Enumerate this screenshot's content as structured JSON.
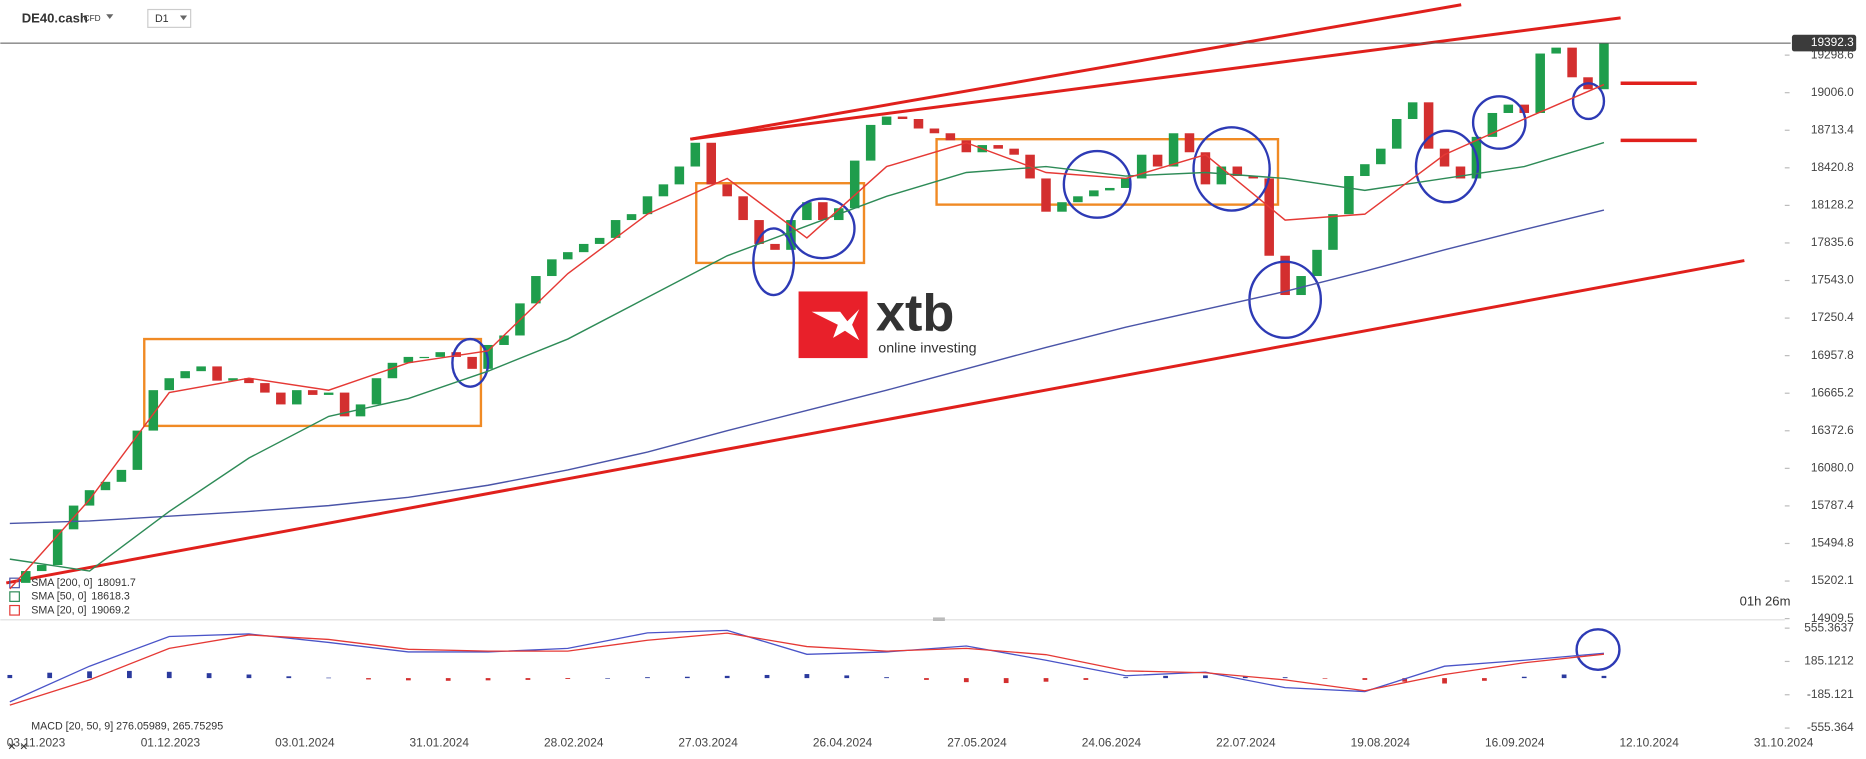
{
  "header": {
    "symbol": "DE40.cash",
    "instrument_type": "CFD",
    "timeframe": "D1"
  },
  "countdown": "01h 26m",
  "logo": {
    "name": "xtb",
    "tagline": "online investing"
  },
  "chart_data": [
    {
      "type": "candlestick",
      "close": [
        15188,
        15280,
        15327,
        15605,
        15790,
        15910,
        15975,
        16068,
        16374,
        16689,
        16782,
        16837,
        16874,
        16763,
        16782,
        16744,
        16670,
        16578,
        16689,
        16652,
        16670,
        16485,
        16578,
        16782,
        16902,
        16948,
        16948,
        16985,
        16948,
        16855,
        17041,
        17115,
        17365,
        17578,
        17708,
        17764,
        17828,
        17875,
        18014,
        18060,
        18199,
        18292,
        18431,
        18616,
        18292,
        18199,
        18014,
        17828,
        17782,
        18014,
        18153,
        18014,
        18106,
        18477,
        18755,
        18820,
        18801,
        18727,
        18690,
        18635,
        18542,
        18598,
        18570,
        18523,
        18338,
        18079,
        18153,
        18199,
        18245,
        18264,
        18338,
        18523,
        18431,
        18690,
        18542,
        18292,
        18431,
        18357,
        18338,
        17736,
        17430,
        17578,
        17782,
        18060,
        18357,
        18449,
        18570,
        18801,
        18931,
        18570,
        18431,
        18338,
        18662,
        18848,
        18913,
        18848,
        19311,
        19357,
        19126,
        19033,
        19392.3
      ],
      "up_color": "#1f9d4c",
      "down_color": "#d32f2f",
      "series": [
        {
          "name": "SMA [200, 0]",
          "color": "#4a54a8",
          "values": [
            15651,
            15670,
            15707,
            15744,
            15790,
            15855,
            15948,
            16068,
            16207,
            16374,
            16531,
            16689,
            16855,
            17022,
            17180,
            17319,
            17458,
            17615,
            17782,
            17940,
            18091.7
          ]
        },
        {
          "name": "SMA [50, 0]",
          "color": "#2e8b57",
          "values": [
            15373,
            15280,
            15744,
            16160,
            16485,
            16624,
            16837,
            17087,
            17411,
            17736,
            17968,
            18199,
            18384,
            18431,
            18357,
            18384,
            18338,
            18245,
            18338,
            18431,
            18618.3
          ]
        },
        {
          "name": "SMA [20, 0]",
          "color": "#e53935",
          "values": [
            15141,
            15836,
            16670,
            16782,
            16689,
            16902,
            16995,
            17597,
            18060,
            18338,
            17875,
            18431,
            18616,
            18384,
            18338,
            18523,
            18014,
            18060,
            18523,
            18801,
            19069.2
          ]
        }
      ],
      "ylim": [
        14909.5,
        19728
      ],
      "yticks": [
        19298.6,
        {
          "value": 19006,
          "label": "19006.0"
        },
        18713.4,
        18420.8,
        18128.2,
        17835.6,
        {
          "value": 17543,
          "label": "17543.0"
        },
        17250.4,
        16957.8,
        16665.2,
        16372.6,
        {
          "value": 16080,
          "label": "16080.0"
        },
        15787.4,
        15494.8,
        15202.1,
        14909.5
      ],
      "x_tick_labels": [
        "03.11.2023",
        "01.12.2023",
        "03.01.2024",
        "31.01.2024",
        "28.02.2024",
        "27.03.2024",
        "26.04.2024",
        "27.05.2024",
        "24.06.2024",
        "22.07.2024",
        "19.08.2024",
        "16.09.2024",
        "12.10.2024",
        "31.10.2024"
      ]
    },
    {
      "type": "macd",
      "legend": "MACD [20, 50, 9] 276.05989, 265.75295",
      "series": [
        {
          "name": "MACD",
          "color": "#4a54c8",
          "values": [
            -265,
            132,
            463,
            490,
            397,
            291,
            291,
            330,
            503,
            530,
            265,
            291,
            357,
            198,
            26,
            66,
            -106,
            -150,
            132,
            198,
            276.05989
          ]
        },
        {
          "name": "Signal",
          "color": "#e53935",
          "values": [
            -300,
            -20,
            330,
            480,
            430,
            320,
            300,
            300,
            420,
            500,
            350,
            300,
            330,
            260,
            80,
            60,
            -20,
            -140,
            40,
            170,
            265.75295
          ]
        }
      ],
      "histogram": [
        35,
        60,
        75,
        80,
        70,
        55,
        40,
        20,
        5,
        -15,
        -25,
        -30,
        -25,
        -20,
        -10,
        0,
        10,
        15,
        25,
        35,
        45,
        30,
        10,
        -20,
        -45,
        -55,
        -40,
        -20,
        10,
        25,
        30,
        20,
        10,
        -5,
        -20,
        -40,
        -60,
        -30,
        15,
        40,
        25
      ],
      "histogram_colors": [
        "#2b3a9e",
        "#d32f2f"
      ],
      "ylim": [
        -555.364,
        555.3637
      ],
      "yticks": [
        555.3637,
        185.1212,
        -185.121,
        -555.364
      ]
    }
  ]
}
